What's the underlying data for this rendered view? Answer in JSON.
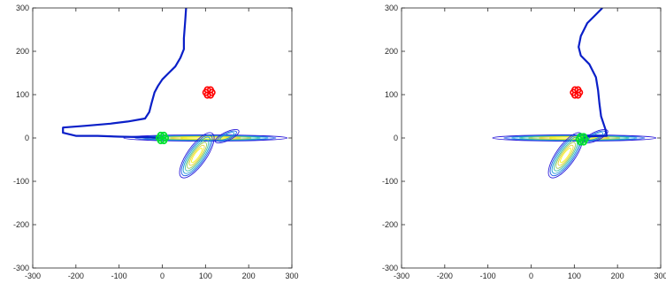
{
  "chart_data": [
    {
      "type": "line",
      "title": "",
      "xlabel": "",
      "ylabel": "",
      "xlim": [
        -300,
        300
      ],
      "ylim": [
        -300,
        300
      ],
      "xticks": [
        -300,
        -200,
        -100,
        0,
        100,
        200,
        300
      ],
      "yticks": [
        -300,
        -200,
        -100,
        0,
        100,
        200,
        300
      ],
      "grid": false,
      "series": [
        {
          "kind": "trajectory",
          "color": "#0a1fc8",
          "points": [
            [
              55,
              300
            ],
            [
              53,
              270
            ],
            [
              50,
              230
            ],
            [
              50,
              205
            ],
            [
              42,
              185
            ],
            [
              30,
              165
            ],
            [
              15,
              150
            ],
            [
              0,
              135
            ],
            [
              -10,
              120
            ],
            [
              -18,
              105
            ],
            [
              -25,
              80
            ],
            [
              -30,
              60
            ],
            [
              -40,
              45
            ],
            [
              -80,
              38
            ],
            [
              -120,
              33
            ],
            [
              -180,
              28
            ],
            [
              -230,
              24
            ],
            [
              -230,
              12
            ],
            [
              -200,
              5
            ],
            [
              -150,
              5
            ],
            [
              -100,
              3
            ],
            [
              -50,
              2
            ],
            [
              0,
              0
            ]
          ]
        },
        {
          "kind": "start-marker",
          "color": "#ff0000",
          "x": 108,
          "y": 105
        },
        {
          "kind": "end-marker",
          "color": "#00e030",
          "x": 0,
          "y": 0
        },
        {
          "kind": "contour",
          "colormap": [
            "#2a1ad9",
            "#1f5fe8",
            "#1c9ad8",
            "#3fc0a8",
            "#9ccc5a",
            "#e6d438",
            "#f9f31c"
          ]
        }
      ]
    },
    {
      "type": "line",
      "title": "",
      "xlabel": "",
      "ylabel": "",
      "xlim": [
        -300,
        300
      ],
      "ylim": [
        -300,
        300
      ],
      "xticks": [
        -300,
        -200,
        -100,
        0,
        100,
        200,
        300
      ],
      "yticks": [
        -300,
        -200,
        -100,
        0,
        100,
        200,
        300
      ],
      "grid": false,
      "series": [
        {
          "kind": "trajectory",
          "color": "#0a1fc8",
          "points": [
            [
              165,
              300
            ],
            [
              150,
              285
            ],
            [
              130,
              265
            ],
            [
              115,
              235
            ],
            [
              110,
              210
            ],
            [
              115,
              190
            ],
            [
              135,
              170
            ],
            [
              150,
              140
            ],
            [
              155,
              110
            ],
            [
              158,
              80
            ],
            [
              162,
              50
            ],
            [
              172,
              20
            ],
            [
              175,
              5
            ],
            [
              160,
              5
            ],
            [
              130,
              3
            ],
            [
              120,
              0
            ]
          ]
        },
        {
          "kind": "start-marker",
          "color": "#ff0000",
          "x": 105,
          "y": 105
        },
        {
          "kind": "end-marker",
          "color": "#00e030",
          "x": 118,
          "y": -3
        },
        {
          "kind": "contour",
          "colormap": [
            "#2a1ad9",
            "#1f5fe8",
            "#1c9ad8",
            "#3fc0a8",
            "#9ccc5a",
            "#e6d438",
            "#f9f31c"
          ]
        }
      ]
    }
  ]
}
